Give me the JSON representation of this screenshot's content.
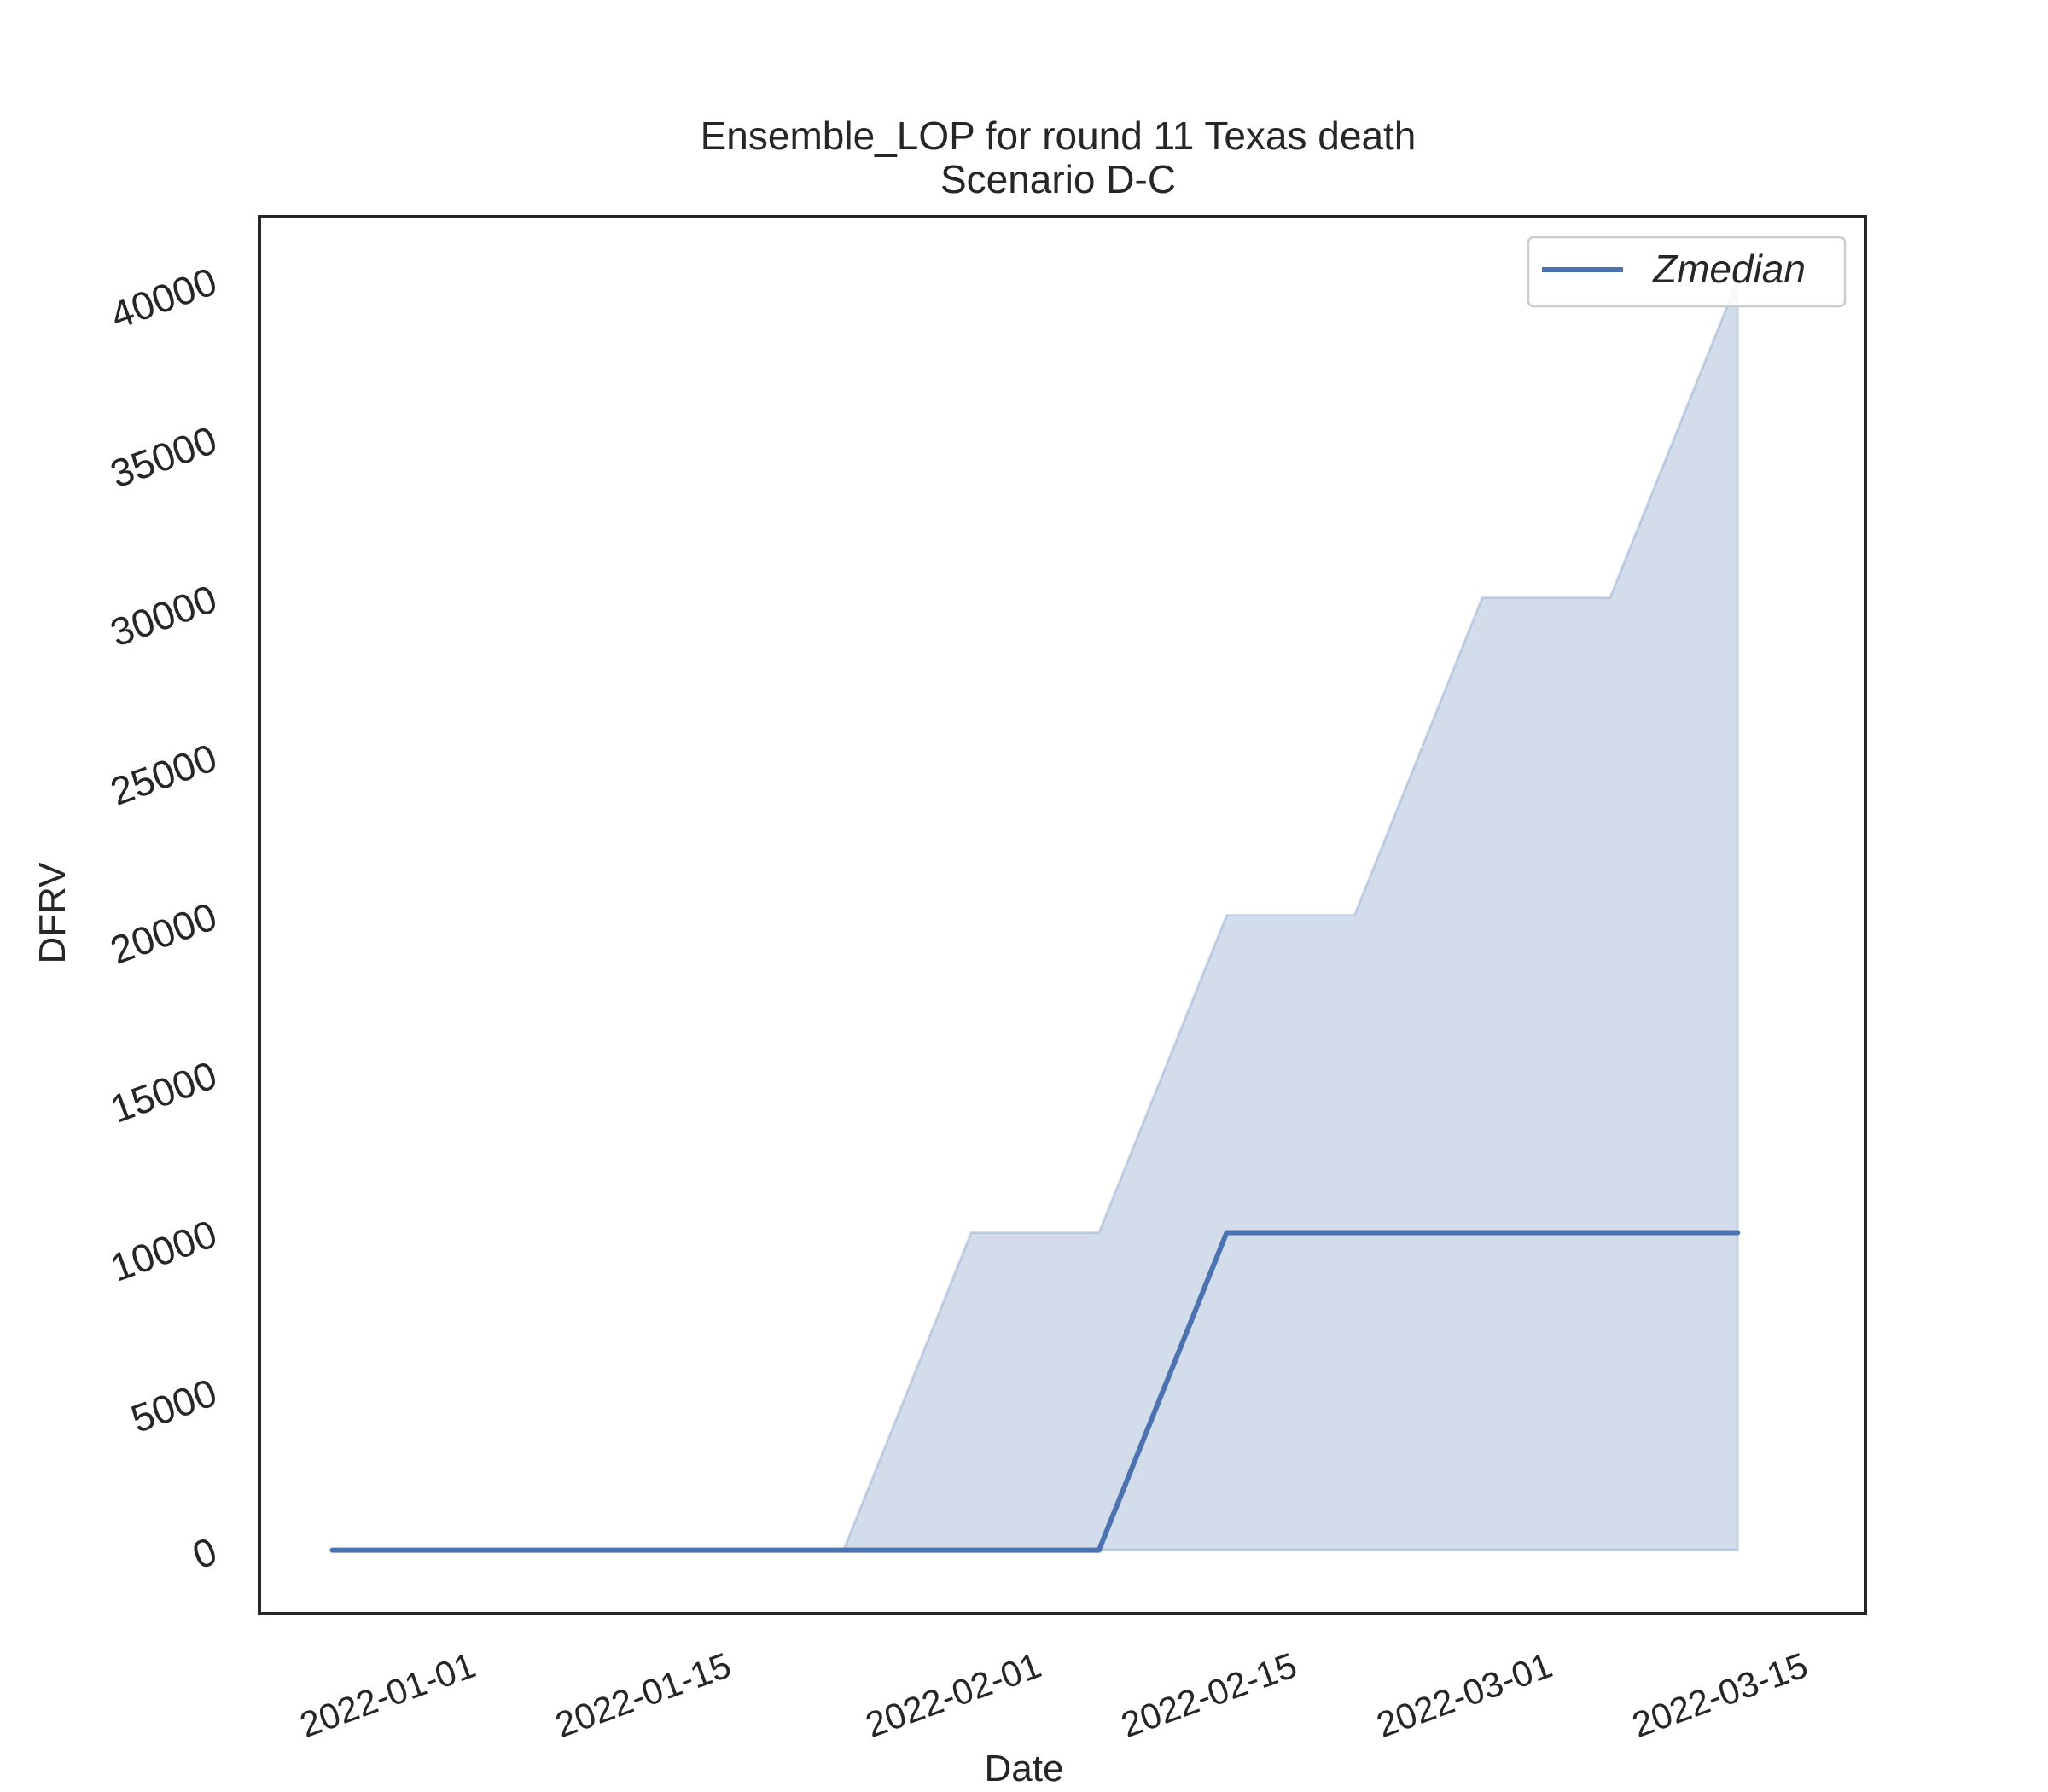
{
  "chart_data": {
    "type": "line",
    "title": "Ensemble_LOP for round 11 Texas death",
    "subtitle": "Scenario D-C",
    "xlabel": "Date",
    "ylabel": "DFRV",
    "x": [
      "2021-12-25",
      "2022-01-01",
      "2022-01-08",
      "2022-01-15",
      "2022-01-22",
      "2022-01-29",
      "2022-02-05",
      "2022-02-12",
      "2022-02-19",
      "2022-02-26",
      "2022-03-05",
      "2022-03-12"
    ],
    "series": [
      {
        "name": "Zmedian",
        "type": "line",
        "color": "#4c72b0",
        "values": [
          0,
          0,
          0,
          0,
          0,
          0,
          0,
          10000,
          10000,
          10000,
          10000,
          10000
        ]
      }
    ],
    "band": {
      "color": "#4c72b0",
      "lower": [
        0,
        0,
        0,
        0,
        0,
        0,
        0,
        0,
        0,
        0,
        0,
        0
      ],
      "upper": [
        0,
        0,
        0,
        0,
        0,
        10000,
        10000,
        20000,
        20000,
        30000,
        30000,
        40000
      ]
    },
    "xticks": [
      "2022-01-01",
      "2022-01-15",
      "2022-02-01",
      "2022-02-15",
      "2022-03-01",
      "2022-03-15"
    ],
    "yticks": [
      0,
      5000,
      10000,
      15000,
      20000,
      25000,
      30000,
      35000,
      40000
    ],
    "xlim": [
      "2021-12-21",
      "2022-03-19"
    ],
    "ylim": [
      -2000,
      42000
    ],
    "grid": false,
    "legend_position": "top-right"
  }
}
